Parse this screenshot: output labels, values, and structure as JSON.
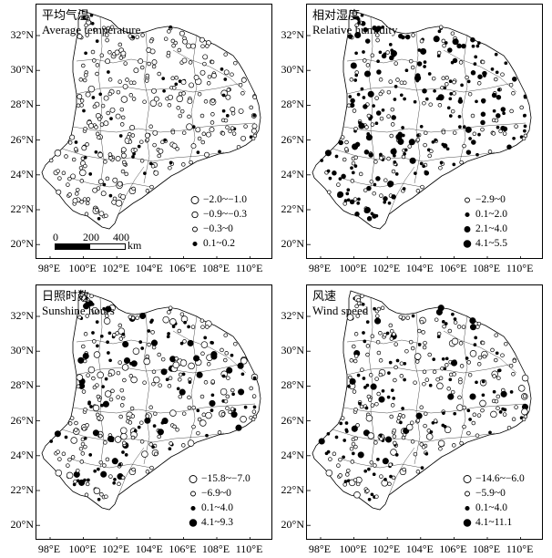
{
  "panels": [
    {
      "title_cn": "平均气温",
      "title_en": "Average temperature",
      "legend": [
        {
          "label": "−2.0~−1.0",
          "symbol": "open-large"
        },
        {
          "label": "−0.9~−0.3",
          "symbol": "open-medium"
        },
        {
          "label": "−0.3~0",
          "symbol": "open-small"
        },
        {
          "label": "0.1~0.2",
          "symbol": "filled-small"
        }
      ],
      "scale_bar": {
        "labels": [
          "0",
          "200",
          "400"
        ],
        "unit": "km"
      }
    },
    {
      "title_cn": "相对湿度",
      "title_en": "Relative humidity",
      "legend": [
        {
          "label": "−2.9~0",
          "symbol": "open-small"
        },
        {
          "label": "0.1~2.0",
          "symbol": "filled-small"
        },
        {
          "label": "2.1~4.0",
          "symbol": "filled-medium"
        },
        {
          "label": "4.1~5.5",
          "symbol": "filled-large"
        }
      ]
    },
    {
      "title_cn": "日照时数",
      "title_en": "Sunshine hours",
      "legend": [
        {
          "label": "−15.8~−7.0",
          "symbol": "open-large"
        },
        {
          "label": "−6.9~0",
          "symbol": "open-small"
        },
        {
          "label": "0.1~4.0",
          "symbol": "filled-small"
        },
        {
          "label": "4.1~9.3",
          "symbol": "filled-large"
        }
      ]
    },
    {
      "title_cn": "风速",
      "title_en": "Wind speed",
      "legend": [
        {
          "label": "−14.6~−6.0",
          "symbol": "open-large"
        },
        {
          "label": "−5.9~0",
          "symbol": "open-small"
        },
        {
          "label": "0.1~4.0",
          "symbol": "filled-small"
        },
        {
          "label": "4.1~11.1",
          "symbol": "filled-large"
        }
      ]
    }
  ],
  "axes": {
    "y_ticks": [
      "32°N",
      "30°N",
      "28°N",
      "26°N",
      "24°N",
      "22°N",
      "20°N"
    ],
    "x_ticks": [
      "98°E",
      "100°E",
      "102°E",
      "104°E",
      "106°E",
      "108°E",
      "110°E"
    ]
  },
  "colors": {
    "ink": "#000000",
    "background": "#ffffff"
  }
}
